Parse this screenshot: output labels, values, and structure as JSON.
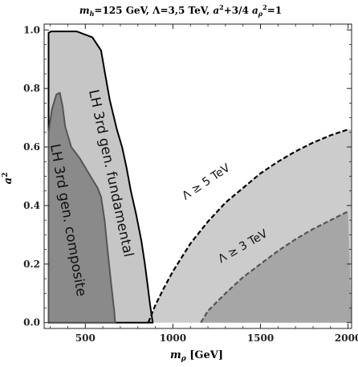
{
  "chart_data": {
    "type": "area",
    "title": "m_h=125 GeV,  Λ=3,5 TeV, a²+3/4 a_ρ²=1",
    "title_parts": {
      "m": "m",
      "m_sub": "h",
      "rest": "=125 GeV,  Λ=3,5 TeV, ",
      "a": "a",
      "a_sup": "2",
      "mid": "+3/4 ",
      "a2": "a",
      "a2_sub": "ρ",
      "a2_sup": "2",
      "end": "=1"
    },
    "xlabel": "m_ρ [GeV]",
    "xlabel_parts": {
      "m": "m",
      "sub": "ρ",
      "unit": " [GeV]"
    },
    "ylabel": "a²",
    "ylabel_parts": {
      "a": "a",
      "sup": "2"
    },
    "xlim": [
      265,
      2020
    ],
    "ylim": [
      -0.02,
      1.02
    ],
    "x_ticks": [
      500,
      1000,
      1500,
      2000
    ],
    "x_tick_labels": [
      "500",
      "1000",
      "1500",
      "2000"
    ],
    "y_ticks": [
      0.0,
      0.2,
      0.4,
      0.6,
      0.8,
      1.0
    ],
    "y_tick_labels": [
      "0.0",
      "0.2",
      "0.4",
      "0.6",
      "0.8",
      "1.0"
    ],
    "regions": [
      {
        "id": "fundamental",
        "label": "LH 3rd gen. fundamental",
        "fill": "#c6c6c6",
        "stroke": "#000000",
        "points": [
          [
            290,
            0.0
          ],
          [
            290,
            0.99
          ],
          [
            305,
            0.995
          ],
          [
            450,
            0.995
          ],
          [
            540,
            0.975
          ],
          [
            590,
            0.93
          ],
          [
            610,
            0.86
          ],
          [
            640,
            0.76
          ],
          [
            680,
            0.66
          ],
          [
            710,
            0.6
          ],
          [
            735,
            0.53
          ],
          [
            760,
            0.45
          ],
          [
            790,
            0.37
          ],
          [
            820,
            0.28
          ],
          [
            840,
            0.2
          ],
          [
            855,
            0.13
          ],
          [
            870,
            0.06
          ],
          [
            880,
            0.02
          ],
          [
            885,
            0.0
          ]
        ]
      },
      {
        "id": "composite",
        "label": "LH 3rd gen. composite",
        "fill": "#8a8a8a",
        "stroke": "#555555",
        "points": [
          [
            290,
            0.0
          ],
          [
            290,
            0.65
          ],
          [
            310,
            0.73
          ],
          [
            335,
            0.78
          ],
          [
            355,
            0.785
          ],
          [
            370,
            0.74
          ],
          [
            385,
            0.67
          ],
          [
            420,
            0.6
          ],
          [
            470,
            0.56
          ],
          [
            530,
            0.5
          ],
          [
            570,
            0.46
          ],
          [
            590,
            0.43
          ],
          [
            610,
            0.35
          ],
          [
            630,
            0.23
          ],
          [
            650,
            0.12
          ],
          [
            665,
            0.04
          ],
          [
            670,
            0.0
          ]
        ]
      },
      {
        "id": "lambda5",
        "label": "Λ ≥ 5 TeV",
        "fill": "#cccccc",
        "stroke": "#000000",
        "points": [
          [
            860,
            0.0
          ],
          [
            900,
            0.06
          ],
          [
            950,
            0.12
          ],
          [
            1000,
            0.175
          ],
          [
            1100,
            0.27
          ],
          [
            1200,
            0.345
          ],
          [
            1300,
            0.41
          ],
          [
            1400,
            0.46
          ],
          [
            1500,
            0.51
          ],
          [
            1600,
            0.55
          ],
          [
            1700,
            0.585
          ],
          [
            1800,
            0.615
          ],
          [
            1900,
            0.64
          ],
          [
            2000,
            0.66
          ]
        ]
      },
      {
        "id": "lambda3",
        "label": "Λ ≥ 3 TeV",
        "fill": "#a6a6a6",
        "stroke": "#555555",
        "points": [
          [
            1160,
            0.0
          ],
          [
            1200,
            0.04
          ],
          [
            1300,
            0.1
          ],
          [
            1400,
            0.155
          ],
          [
            1500,
            0.2
          ],
          [
            1600,
            0.245
          ],
          [
            1700,
            0.285
          ],
          [
            1800,
            0.32
          ],
          [
            1900,
            0.35
          ],
          [
            2000,
            0.38
          ]
        ]
      }
    ],
    "annotations": [
      {
        "id": "fund-label",
        "text": "LH 3rd gen. fundamental",
        "x": 645,
        "y": 0.51,
        "angle": 78
      },
      {
        "id": "comp-label",
        "text": "LH 3rd gen. composite",
        "x": 400,
        "y": 0.35,
        "angle": 80
      },
      {
        "id": "l5-label",
        "text": "Λ ≥ 5 TeV",
        "x": 1190,
        "y": 0.48,
        "angle": -34
      },
      {
        "id": "l3-label",
        "text": "Λ ≥ 3 TeV",
        "x": 1400,
        "y": 0.26,
        "angle": -30
      }
    ],
    "grid": false,
    "legend": "none"
  }
}
